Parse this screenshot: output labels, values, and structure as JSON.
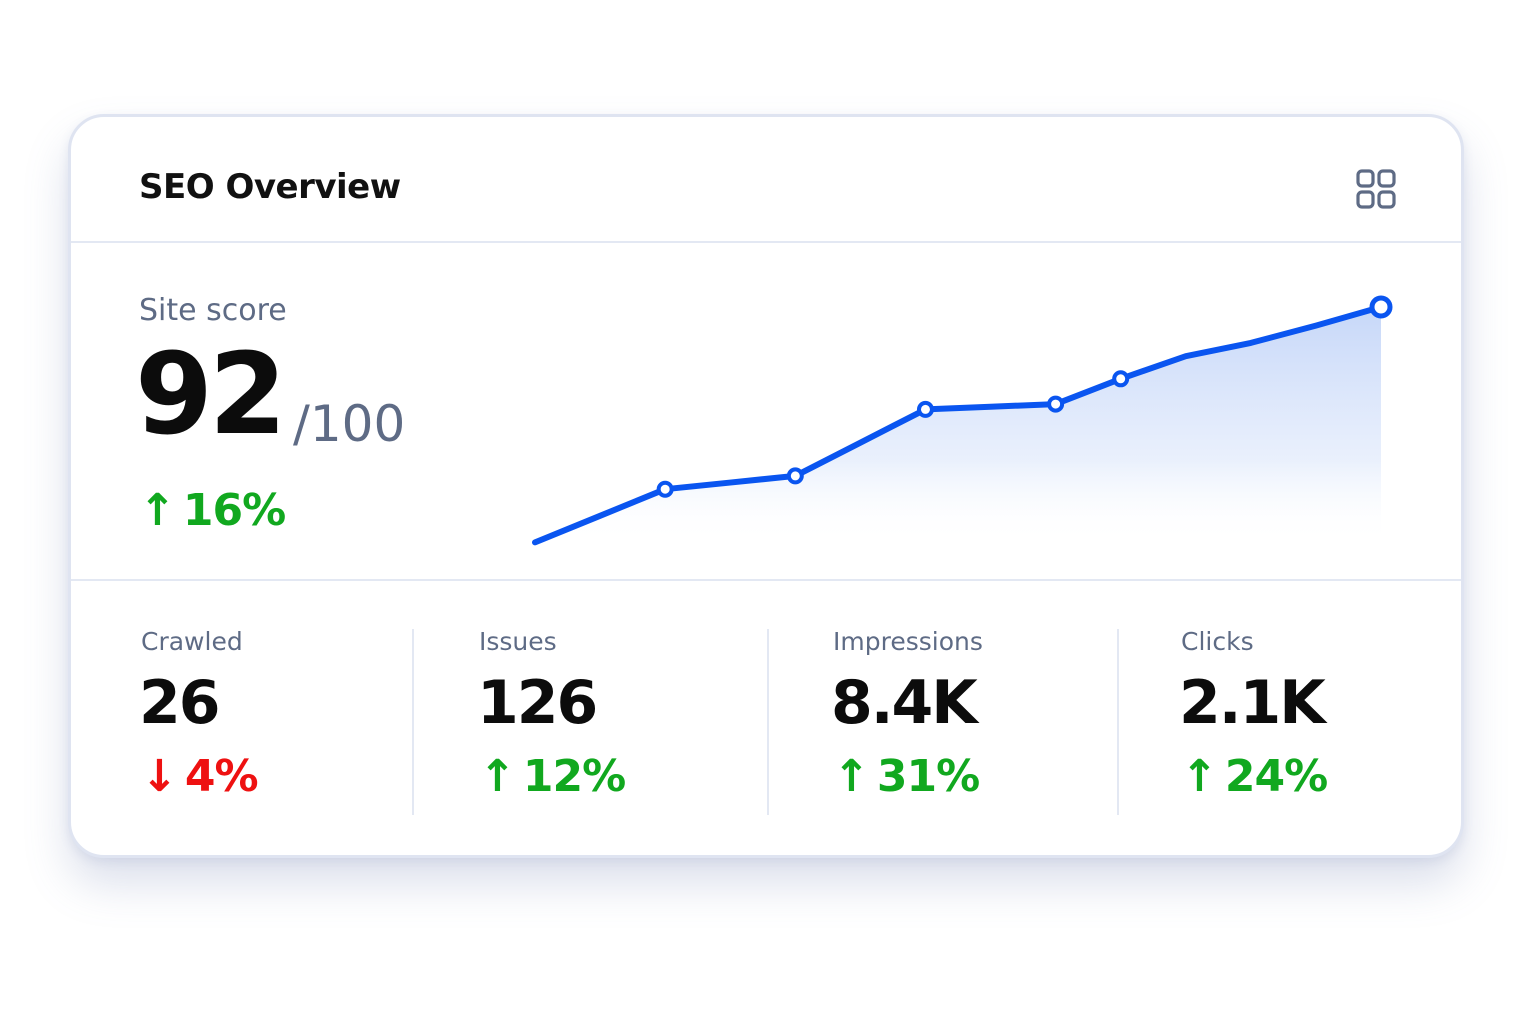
{
  "header": {
    "title": "SEO Overview",
    "menu_icon": "grid-icon"
  },
  "site_score": {
    "label": "Site score",
    "value": "92",
    "max": "/100",
    "change": "16%",
    "direction": "up"
  },
  "stats": [
    {
      "label": "Crawled",
      "value": "26",
      "change": "4%",
      "direction": "down"
    },
    {
      "label": "Issues",
      "value": "126",
      "change": "12%",
      "direction": "up"
    },
    {
      "label": "Impressions",
      "value": "8.4K",
      "change": "31%",
      "direction": "up"
    },
    {
      "label": "Clicks",
      "value": "2.1K",
      "change": "24%",
      "direction": "up"
    }
  ],
  "colors": {
    "accent": "#0a55f0",
    "positive": "#11a81f",
    "negative": "#ee1111",
    "muted_text": "#5e6b85"
  },
  "chart_data": {
    "type": "area",
    "x": [
      0,
      1,
      2,
      3,
      4,
      5,
      6,
      7,
      8,
      9,
      10,
      11,
      12,
      13
    ],
    "values": [
      72,
      74,
      76,
      76.5,
      77,
      79.5,
      82,
      82.2,
      82.4,
      84.3,
      86,
      87,
      88.3,
      89.7
    ],
    "markers": [
      false,
      false,
      true,
      false,
      true,
      false,
      true,
      false,
      true,
      true,
      false,
      false,
      false,
      true
    ],
    "ylim": [
      70,
      90
    ],
    "grid": false,
    "legend": "none"
  }
}
